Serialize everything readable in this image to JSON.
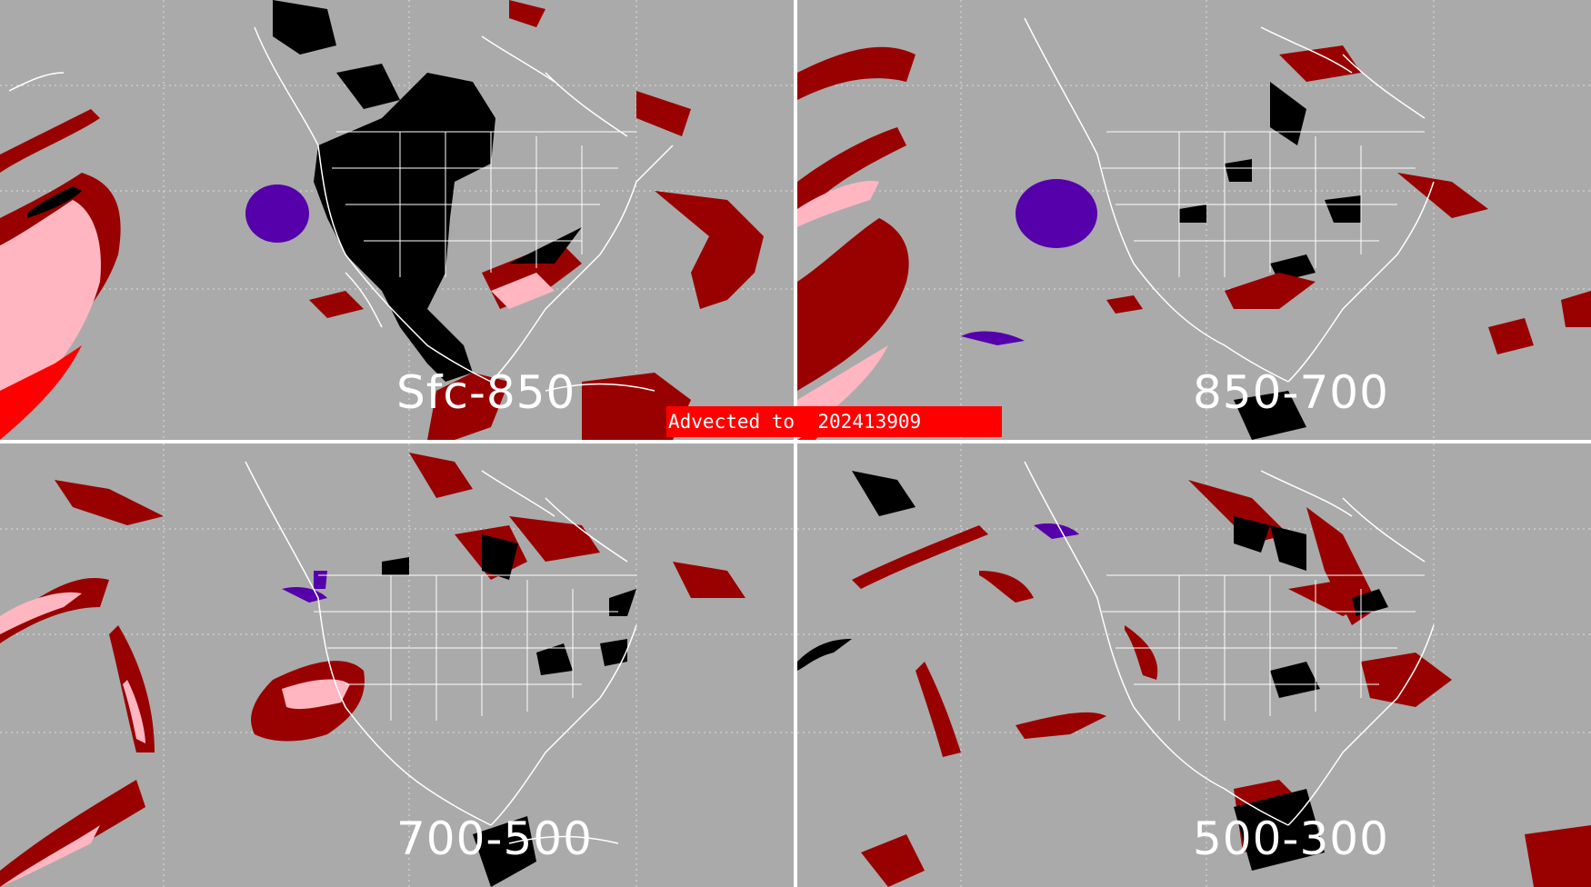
{
  "banner": {
    "text": "Advected to  202413909",
    "color": "#ff0000"
  },
  "legend_colors": {
    "background": "#aaaaaa",
    "coastlines_borders": "#ffffff",
    "black_class": "#000000",
    "dark_red_class": "#990000",
    "pink_class": "#ffb6c1",
    "red_class": "#ff0000",
    "purple_class": "#5500aa"
  },
  "panels": [
    {
      "id": "tl",
      "label": "Sfc-850"
    },
    {
      "id": "tr",
      "label": "850-700"
    },
    {
      "id": "bl",
      "label": "700-500"
    },
    {
      "id": "br",
      "label": "500-300"
    }
  ]
}
